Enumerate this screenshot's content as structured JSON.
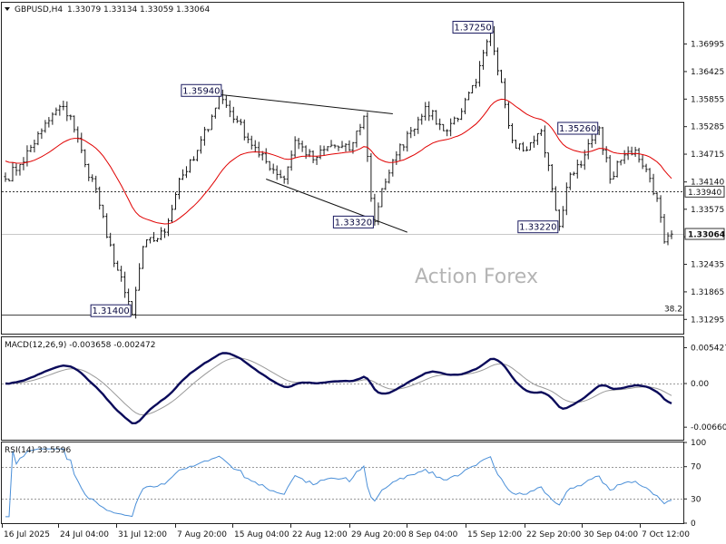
{
  "chart_data": [
    {
      "type": "ohlc",
      "header": {
        "symbol": "GBPUSD,H4",
        "open": "1.33079",
        "high": "1.33134",
        "low": "1.33059",
        "close": "1.33064"
      },
      "watermark": "Action Forex",
      "ylim": [
        1.31,
        1.3785
      ],
      "y_ticks": [
        "1.36995",
        "1.36425",
        "1.35855",
        "1.35285",
        "1.34715",
        "1.34140",
        "1.33575",
        "1.33005",
        "1.32435",
        "1.31865",
        "1.31295"
      ],
      "x_ticks": [
        "16 Jul 2025",
        "24 Jul 04:00",
        "31 Jul 12:00",
        "7 Aug 20:00",
        "15 Aug 04:00",
        "22 Aug 12:00",
        "29 Aug 20:00",
        "8 Sep 04:00",
        "15 Sep 12:00",
        "22 Sep 20:00",
        "30 Sep 04:00",
        "7 Oct 12:00"
      ],
      "anchors": [
        {
          "i": 0,
          "v": 1.342
        },
        {
          "i": 4,
          "v": 1.345
        },
        {
          "i": 10,
          "v": 1.352
        },
        {
          "i": 15,
          "v": 1.357
        },
        {
          "i": 18,
          "v": 1.355
        },
        {
          "i": 22,
          "v": 1.345
        },
        {
          "i": 25,
          "v": 1.34
        },
        {
          "i": 28,
          "v": 1.33
        },
        {
          "i": 33,
          "v": 1.3185
        },
        {
          "i": 35,
          "v": 1.314
        },
        {
          "i": 38,
          "v": 1.328
        },
        {
          "i": 44,
          "v": 1.331
        },
        {
          "i": 48,
          "v": 1.342
        },
        {
          "i": 52,
          "v": 1.346
        },
        {
          "i": 57,
          "v": 1.355
        },
        {
          "i": 59,
          "v": 1.3594
        },
        {
          "i": 64,
          "v": 1.354
        },
        {
          "i": 70,
          "v": 1.347
        },
        {
          "i": 77,
          "v": 1.342
        },
        {
          "i": 80,
          "v": 1.35
        },
        {
          "i": 85,
          "v": 1.346
        },
        {
          "i": 90,
          "v": 1.349
        },
        {
          "i": 95,
          "v": 1.348
        },
        {
          "i": 99,
          "v": 1.355
        },
        {
          "i": 101,
          "v": 1.338
        },
        {
          "i": 102,
          "v": 1.3332
        },
        {
          "i": 104,
          "v": 1.34
        },
        {
          "i": 108,
          "v": 1.347
        },
        {
          "i": 112,
          "v": 1.352
        },
        {
          "i": 116,
          "v": 1.357
        },
        {
          "i": 121,
          "v": 1.352
        },
        {
          "i": 126,
          "v": 1.356
        },
        {
          "i": 130,
          "v": 1.362
        },
        {
          "i": 134,
          "v": 1.3725
        },
        {
          "i": 137,
          "v": 1.362
        },
        {
          "i": 140,
          "v": 1.35
        },
        {
          "i": 144,
          "v": 1.348
        },
        {
          "i": 148,
          "v": 1.352
        },
        {
          "i": 151,
          "v": 1.34
        },
        {
          "i": 153,
          "v": 1.3322
        },
        {
          "i": 156,
          "v": 1.343
        },
        {
          "i": 160,
          "v": 1.347
        },
        {
          "i": 164,
          "v": 1.3526
        },
        {
          "i": 167,
          "v": 1.342
        },
        {
          "i": 171,
          "v": 1.347
        },
        {
          "i": 174,
          "v": 1.348
        },
        {
          "i": 177,
          "v": 1.344
        },
        {
          "i": 180,
          "v": 1.338
        },
        {
          "i": 182,
          "v": 1.329
        },
        {
          "i": 184,
          "v": 1.3306
        }
      ],
      "price_labels": [
        {
          "text": "1.35940",
          "i": 59,
          "v": 1.3594,
          "pos": "above-left"
        },
        {
          "text": "1.37250",
          "i": 134,
          "v": 1.3725,
          "pos": "above-left"
        },
        {
          "text": "1.35260",
          "i": 164,
          "v": 1.3526,
          "pos": "left"
        },
        {
          "text": "1.33320",
          "i": 102,
          "v": 1.3332,
          "pos": "left"
        },
        {
          "text": "1.33220",
          "i": 153,
          "v": 1.3322,
          "pos": "left"
        },
        {
          "text": "1.31400",
          "i": 35,
          "v": 1.314,
          "pos": "below-left"
        }
      ],
      "levels": [
        {
          "name": "dotted-level",
          "v": 1.3394,
          "label": "1.33940",
          "style": "dotted"
        },
        {
          "name": "current-price",
          "v": 1.33064,
          "label": "1.33064",
          "style": "solid-gray"
        },
        {
          "name": "fib-38",
          "v": 1.314,
          "label": "38.2",
          "style": "solid-dark"
        }
      ],
      "trendlines": [
        {
          "from": {
            "i": 59,
            "v": 1.3595
          },
          "to": {
            "i": 107,
            "v": 1.3555
          }
        },
        {
          "from": {
            "i": 72,
            "v": 1.342
          },
          "to": {
            "i": 111,
            "v": 1.331
          }
        }
      ],
      "ma_color": "#e00000",
      "bar_color": "#1a1a1a"
    },
    {
      "type": "line",
      "title": "MACD(12,26,9) -0.003658 -0.002472",
      "ylim": [
        -0.0085,
        0.007
      ],
      "y_ticks": [
        "0.005427",
        "0.00",
        "-0.006603"
      ],
      "main_color": "#0a0a5a",
      "signal_color": "#9a9a9a"
    },
    {
      "type": "line",
      "title": "RSI(14) 33.5596",
      "ylim": [
        0,
        100
      ],
      "y_ticks": [
        "100",
        "70",
        "30",
        "0"
      ],
      "levels": [
        70,
        30
      ],
      "line_color": "#4a8fd8"
    }
  ]
}
